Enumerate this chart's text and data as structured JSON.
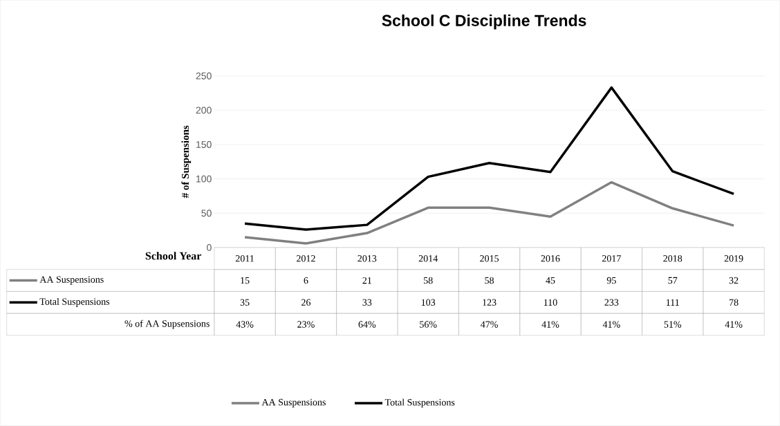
{
  "chart_data": {
    "type": "line",
    "title": "School C Discipline Trends",
    "xlabel": "School Year",
    "ylabel": "# of Suspensions",
    "categories": [
      "2011",
      "2012",
      "2013",
      "2014",
      "2015",
      "2016",
      "2017",
      "2018",
      "2019"
    ],
    "series": [
      {
        "name": "AA Suspensions",
        "color": "#808080",
        "values": [
          15,
          6,
          21,
          58,
          58,
          45,
          95,
          57,
          32
        ]
      },
      {
        "name": "Total Suspensions",
        "color": "#000000",
        "values": [
          35,
          26,
          33,
          103,
          123,
          110,
          233,
          111,
          78
        ]
      }
    ],
    "ylim": [
      0,
      250
    ],
    "yticks": [
      0,
      50,
      100,
      150,
      200,
      250
    ],
    "grid": "y",
    "legend": "bottom",
    "marker": "none",
    "line_style": "solid",
    "data_labels": true,
    "annotations": [
      "% of AA Supsensions",
      "43%",
      "23%",
      "64%",
      "56%",
      "47%",
      "41%",
      "41%",
      "51%",
      "41%"
    ]
  }
}
